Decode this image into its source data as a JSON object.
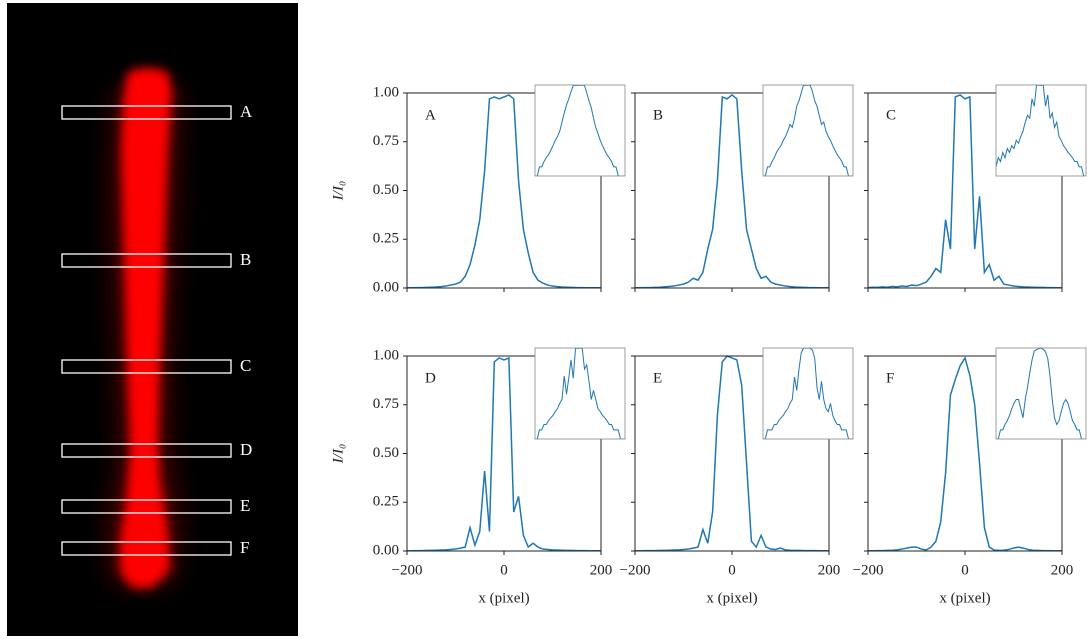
{
  "beam_image": {
    "labels": [
      "A",
      "B",
      "C",
      "D",
      "E",
      "F"
    ]
  },
  "chart_data": [
    {
      "type": "line",
      "label": "A",
      "ylabel": "I/I₀",
      "color": "#1f77b4",
      "x": [
        -200,
        -190,
        -180,
        -170,
        -160,
        -150,
        -140,
        -130,
        -120,
        -110,
        -100,
        -90,
        -80,
        -70,
        -60,
        -50,
        -40,
        -30,
        -20,
        -10,
        0,
        10,
        20,
        30,
        40,
        50,
        60,
        70,
        80,
        90,
        100,
        110,
        120,
        130,
        140,
        150,
        160,
        170,
        180,
        190,
        200
      ],
      "values": [
        0.001,
        0.001,
        0.002,
        0.002,
        0.003,
        0.004,
        0.005,
        0.007,
        0.01,
        0.015,
        0.02,
        0.03,
        0.06,
        0.12,
        0.22,
        0.35,
        0.6,
        0.97,
        0.98,
        0.97,
        0.98,
        0.99,
        0.97,
        0.55,
        0.3,
        0.18,
        0.08,
        0.04,
        0.025,
        0.015,
        0.01,
        0.007,
        0.005,
        0.004,
        0.003,
        0.002,
        0.002,
        0.001,
        0.001,
        0.001,
        0.001
      ],
      "xlim": [
        -200,
        200
      ],
      "ylim": [
        0,
        1
      ],
      "xticks": [
        -200,
        0,
        200
      ],
      "xtick_labels": false,
      "yticks": [
        {
          "value": 0,
          "label": "0.00"
        },
        {
          "value": 0.25,
          "label": "0.25"
        },
        {
          "value": 0.5,
          "label": "0.50"
        },
        {
          "value": 0.75,
          "label": "0.75"
        },
        {
          "value": 1,
          "label": "1.00"
        }
      ],
      "ytick_labels": true,
      "inset": {
        "yscale": "log",
        "ylim": [
          0.001,
          1
        ]
      }
    },
    {
      "type": "line",
      "label": "B",
      "color": "#1f77b4",
      "x": [
        -200,
        -190,
        -180,
        -170,
        -160,
        -150,
        -140,
        -130,
        -120,
        -110,
        -100,
        -90,
        -80,
        -70,
        -60,
        -50,
        -40,
        -30,
        -20,
        -10,
        0,
        10,
        20,
        30,
        40,
        50,
        60,
        70,
        80,
        90,
        100,
        110,
        120,
        130,
        140,
        150,
        160,
        170,
        180,
        190,
        200
      ],
      "values": [
        0.001,
        0.001,
        0.002,
        0.002,
        0.003,
        0.004,
        0.006,
        0.008,
        0.01,
        0.015,
        0.02,
        0.03,
        0.05,
        0.04,
        0.08,
        0.2,
        0.3,
        0.55,
        0.98,
        0.97,
        0.99,
        0.97,
        0.6,
        0.3,
        0.2,
        0.1,
        0.05,
        0.06,
        0.03,
        0.02,
        0.015,
        0.01,
        0.007,
        0.005,
        0.004,
        0.003,
        0.002,
        0.002,
        0.001,
        0.001,
        0.001
      ],
      "xlim": [
        -200,
        200
      ],
      "ylim": [
        0,
        1
      ],
      "xticks": [
        -200,
        0,
        200
      ],
      "xtick_labels": false,
      "yticks": [
        0,
        0.25,
        0.5,
        0.75,
        1
      ],
      "ytick_labels": false,
      "inset": {
        "yscale": "log",
        "ylim": [
          0.001,
          1
        ]
      }
    },
    {
      "type": "line",
      "label": "C",
      "color": "#1f77b4",
      "x": [
        -200,
        -190,
        -180,
        -170,
        -160,
        -150,
        -140,
        -130,
        -120,
        -110,
        -100,
        -90,
        -80,
        -70,
        -60,
        -50,
        -40,
        -30,
        -20,
        -10,
        0,
        10,
        20,
        30,
        40,
        50,
        60,
        70,
        80,
        90,
        100,
        110,
        120,
        130,
        140,
        150,
        160,
        170,
        180,
        190,
        200
      ],
      "values": [
        0.002,
        0.004,
        0.003,
        0.006,
        0.004,
        0.008,
        0.006,
        0.01,
        0.008,
        0.015,
        0.012,
        0.02,
        0.03,
        0.06,
        0.1,
        0.08,
        0.35,
        0.2,
        0.98,
        0.99,
        0.97,
        0.98,
        0.2,
        0.47,
        0.08,
        0.12,
        0.04,
        0.06,
        0.02,
        0.015,
        0.01,
        0.008,
        0.006,
        0.005,
        0.004,
        0.003,
        0.003,
        0.002,
        0.002,
        0.001,
        0.001
      ],
      "xlim": [
        -200,
        200
      ],
      "ylim": [
        0,
        1
      ],
      "xticks": [
        -200,
        0,
        200
      ],
      "xtick_labels": false,
      "yticks": [
        0,
        0.25,
        0.5,
        0.75,
        1
      ],
      "ytick_labels": false,
      "inset": {
        "yscale": "log",
        "ylim": [
          0.001,
          1
        ]
      }
    },
    {
      "type": "line",
      "label": "D",
      "ylabel": "I/I₀",
      "xlabel": "x (pixel)",
      "color": "#1f77b4",
      "x": [
        -200,
        -190,
        -180,
        -170,
        -160,
        -150,
        -140,
        -130,
        -120,
        -110,
        -100,
        -90,
        -80,
        -70,
        -60,
        -50,
        -40,
        -30,
        -20,
        -10,
        0,
        10,
        20,
        30,
        40,
        50,
        60,
        70,
        80,
        90,
        100,
        110,
        120,
        130,
        140,
        150,
        160,
        170,
        180,
        190,
        200
      ],
      "values": [
        0.001,
        0.001,
        0.002,
        0.002,
        0.003,
        0.003,
        0.004,
        0.005,
        0.006,
        0.008,
        0.01,
        0.015,
        0.02,
        0.12,
        0.03,
        0.1,
        0.41,
        0.1,
        0.97,
        0.99,
        0.98,
        0.99,
        0.2,
        0.28,
        0.08,
        0.02,
        0.04,
        0.02,
        0.01,
        0.008,
        0.006,
        0.005,
        0.004,
        0.003,
        0.003,
        0.002,
        0.002,
        0.002,
        0.001,
        0.001,
        0.001
      ],
      "xlim": [
        -200,
        200
      ],
      "ylim": [
        0,
        1
      ],
      "xticks": [
        {
          "value": -200,
          "label": "−200"
        },
        0,
        200
      ],
      "xtick_labels": true,
      "yticks": [
        {
          "value": 0,
          "label": "0.00"
        },
        {
          "value": 0.25,
          "label": "0.25"
        },
        {
          "value": 0.5,
          "label": "0.50"
        },
        {
          "value": 0.75,
          "label": "0.75"
        },
        {
          "value": 1,
          "label": "1.00"
        }
      ],
      "ytick_labels": true,
      "inset": {
        "yscale": "log",
        "ylim": [
          0.001,
          1
        ]
      }
    },
    {
      "type": "line",
      "label": "E",
      "xlabel": "x (pixel)",
      "color": "#1f77b4",
      "x": [
        -200,
        -190,
        -180,
        -170,
        -160,
        -150,
        -140,
        -130,
        -120,
        -110,
        -100,
        -90,
        -80,
        -70,
        -60,
        -50,
        -40,
        -30,
        -20,
        -10,
        0,
        10,
        20,
        30,
        40,
        50,
        60,
        70,
        80,
        90,
        100,
        110,
        120,
        130,
        140,
        150,
        160,
        170,
        180,
        190,
        200
      ],
      "values": [
        0.001,
        0.001,
        0.002,
        0.002,
        0.002,
        0.003,
        0.003,
        0.004,
        0.005,
        0.006,
        0.008,
        0.01,
        0.015,
        0.02,
        0.11,
        0.04,
        0.2,
        0.7,
        0.97,
        1.0,
        0.99,
        0.98,
        0.85,
        0.45,
        0.05,
        0.02,
        0.08,
        0.02,
        0.01,
        0.008,
        0.015,
        0.006,
        0.004,
        0.003,
        0.003,
        0.002,
        0.002,
        0.002,
        0.001,
        0.001,
        0.001
      ],
      "xlim": [
        -200,
        200
      ],
      "ylim": [
        0,
        1
      ],
      "xticks": [
        {
          "value": -200,
          "label": "−200"
        },
        0,
        200
      ],
      "xtick_labels": true,
      "yticks": [
        0,
        0.25,
        0.5,
        0.75,
        1
      ],
      "ytick_labels": false,
      "inset": {
        "yscale": "log",
        "ylim": [
          0.001,
          1
        ]
      }
    },
    {
      "type": "line",
      "label": "F",
      "xlabel": "x (pixel)",
      "color": "#1f77b4",
      "x": [
        -200,
        -190,
        -180,
        -170,
        -160,
        -150,
        -140,
        -130,
        -120,
        -110,
        -100,
        -90,
        -80,
        -70,
        -60,
        -50,
        -40,
        -30,
        -20,
        -10,
        0,
        10,
        20,
        30,
        40,
        50,
        60,
        70,
        80,
        90,
        100,
        110,
        120,
        130,
        140,
        150,
        160,
        170,
        180,
        190,
        200
      ],
      "values": [
        0.001,
        0.001,
        0.002,
        0.002,
        0.003,
        0.004,
        0.006,
        0.01,
        0.015,
        0.02,
        0.02,
        0.01,
        0.005,
        0.02,
        0.05,
        0.15,
        0.4,
        0.8,
        0.88,
        0.95,
        0.99,
        0.9,
        0.75,
        0.45,
        0.12,
        0.02,
        0.005,
        0.003,
        0.004,
        0.008,
        0.015,
        0.02,
        0.015,
        0.008,
        0.004,
        0.003,
        0.002,
        0.002,
        0.001,
        0.001,
        0.001
      ],
      "xlim": [
        -200,
        200
      ],
      "ylim": [
        0,
        1
      ],
      "xticks": [
        {
          "value": -200,
          "label": "−200"
        },
        0,
        200
      ],
      "xtick_labels": true,
      "yticks": [
        0,
        0.25,
        0.5,
        0.75,
        1
      ],
      "ytick_labels": false,
      "inset": {
        "yscale": "log",
        "ylim": [
          0.001,
          1
        ]
      }
    }
  ]
}
